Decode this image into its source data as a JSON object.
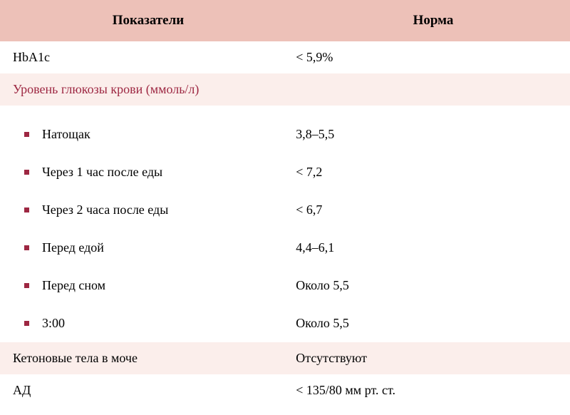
{
  "header": {
    "col1": "Показатели",
    "col2": "Норма"
  },
  "rows": {
    "hba1c": {
      "label": "HbA1c",
      "value": "< 5,9%"
    },
    "section1": "Уровень глюкозы крови (ммоль/л)",
    "fasting": {
      "label": "Натощак",
      "value": "3,8–5,5"
    },
    "after1h": {
      "label": "Через 1 час после еды",
      "value": "< 7,2"
    },
    "after2h": {
      "label": "Через 2 часа после еды",
      "value": "< 6,7"
    },
    "before_meal": {
      "label": "Перед едой",
      "value": "4,4–6,1"
    },
    "before_sleep": {
      "label": "Перед сном",
      "value": "Около 5,5"
    },
    "at300": {
      "label": "3:00",
      "value": "Около 5,5"
    },
    "ketones": {
      "label": "Кетоновые тела в моче",
      "value": "Отсутствуют"
    },
    "bp": {
      "label": "АД",
      "value": "< 135/80 мм рт. ст."
    }
  },
  "colors": {
    "header_bg": "#edc1b8",
    "section_bg": "#fbeeeb",
    "section_text": "#9d2742",
    "bullet": "#9d2742",
    "text": "#000000",
    "background": "#ffffff"
  }
}
